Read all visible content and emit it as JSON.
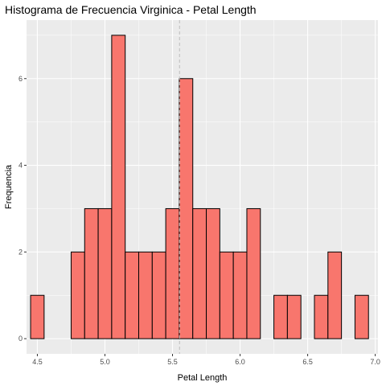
{
  "chart_data": {
    "type": "bar",
    "title": "Histograma de Frecuencia Virginica - Petal Length",
    "xlabel": "Petal Length",
    "ylabel": "Frequencia",
    "xlim": [
      4.42,
      7.02
    ],
    "ylim": [
      -0.35,
      7.35
    ],
    "x_ticks": [
      "4.5",
      "5.0",
      "5.5",
      "6.0",
      "6.5",
      "7.0"
    ],
    "y_ticks": [
      "0",
      "2",
      "4",
      "6"
    ],
    "bin_width": 0.1,
    "bins": [
      {
        "center": 4.5,
        "count": 1
      },
      {
        "center": 4.6,
        "count": 0
      },
      {
        "center": 4.7,
        "count": 0
      },
      {
        "center": 4.8,
        "count": 2
      },
      {
        "center": 4.9,
        "count": 3
      },
      {
        "center": 5.0,
        "count": 3
      },
      {
        "center": 5.1,
        "count": 7
      },
      {
        "center": 5.2,
        "count": 2
      },
      {
        "center": 5.3,
        "count": 2
      },
      {
        "center": 5.4,
        "count": 2
      },
      {
        "center": 5.5,
        "count": 3
      },
      {
        "center": 5.6,
        "count": 6
      },
      {
        "center": 5.7,
        "count": 3
      },
      {
        "center": 5.8,
        "count": 3
      },
      {
        "center": 5.9,
        "count": 2
      },
      {
        "center": 6.0,
        "count": 2
      },
      {
        "center": 6.1,
        "count": 3
      },
      {
        "center": 6.2,
        "count": 0
      },
      {
        "center": 6.3,
        "count": 1
      },
      {
        "center": 6.4,
        "count": 1
      },
      {
        "center": 6.5,
        "count": 0
      },
      {
        "center": 6.6,
        "count": 1
      },
      {
        "center": 6.7,
        "count": 2
      },
      {
        "center": 6.8,
        "count": 0
      },
      {
        "center": 6.9,
        "count": 1
      }
    ],
    "mean_line": 5.552,
    "grid": true,
    "colors": {
      "bar_fill": "#f8766d",
      "bar_stroke": "#000000",
      "panel_bg": "#ebebeb",
      "grid_major": "#ffffff",
      "mean_line": "#bdbdbd"
    }
  }
}
